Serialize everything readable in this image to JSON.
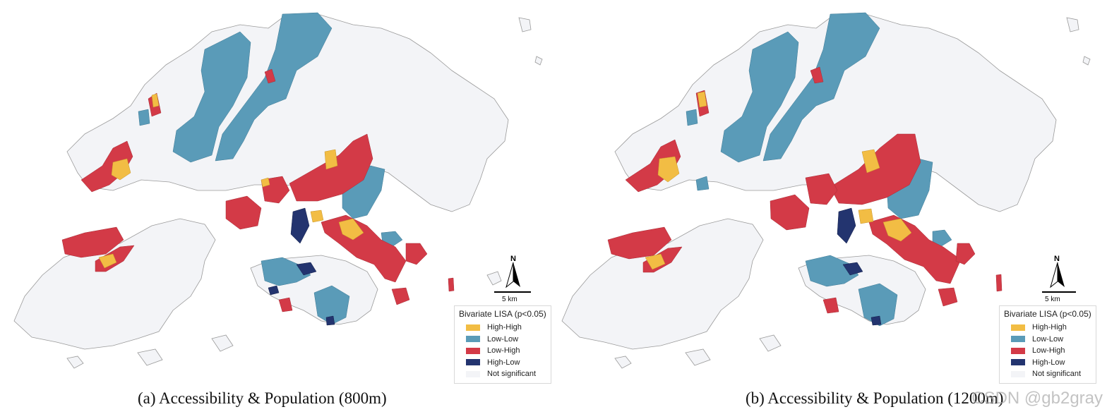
{
  "panels": [
    {
      "caption": "(a) Accessibility & Population (800m)",
      "legend": {
        "title": "Bivariate LISA (p<0.05)",
        "items": [
          {
            "label": "High-High",
            "color": "#f2bd44"
          },
          {
            "label": "Low-Low",
            "color": "#5a9bb8"
          },
          {
            "label": "Low-High",
            "color": "#d33a47"
          },
          {
            "label": "High-Low",
            "color": "#23346f"
          },
          {
            "label": "Not significant",
            "color": "#f3f4f7"
          }
        ]
      },
      "north_label": "N",
      "scale_label": "5 km"
    },
    {
      "caption": "(b) Accessibility & Population (1200m)",
      "legend": {
        "title": "Bivariate LISA (p<0.05)",
        "items": [
          {
            "label": "High-High",
            "color": "#f2bd44"
          },
          {
            "label": "Low-Low",
            "color": "#5a9bb8"
          },
          {
            "label": "Low-High",
            "color": "#d33a47"
          },
          {
            "label": "High-Low",
            "color": "#23346f"
          },
          {
            "label": "Not significant",
            "color": "#f3f4f7"
          }
        ]
      },
      "north_label": "N",
      "scale_label": "5 km"
    }
  ],
  "watermark": "CSDN @gb2gray",
  "colors": {
    "high_high": "#f2bd44",
    "low_low": "#5a9bb8",
    "low_high": "#d33a47",
    "high_low": "#23346f",
    "not_significant": "#f3f4f7",
    "outline": "#9a9a9a"
  }
}
